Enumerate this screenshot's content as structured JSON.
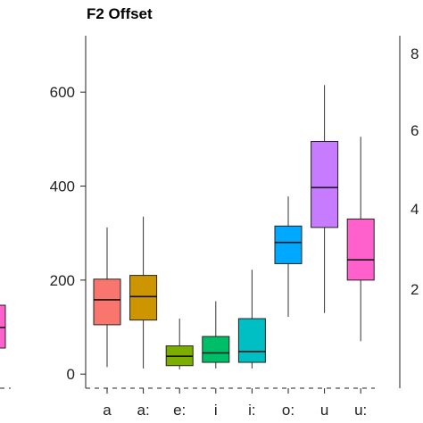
{
  "chart_data": {
    "type": "box",
    "title": "F2 Offset",
    "xlabel": "",
    "ylabel": "",
    "ylim": [
      -30,
      720
    ],
    "yticks": [
      0,
      200,
      400,
      600
    ],
    "grid": false,
    "legend": "none",
    "categories": [
      "a",
      "a:",
      "e:",
      "i",
      "i:",
      "o:",
      "u",
      "u:"
    ],
    "boxes": [
      {
        "category": "a",
        "whisker_low": 15,
        "q1": 105,
        "median": 158,
        "q3": 202,
        "whisker_high": 312,
        "color": "#F8766D"
      },
      {
        "category": "a:",
        "whisker_low": 12,
        "q1": 115,
        "median": 165,
        "q3": 210,
        "whisker_high": 335,
        "color": "#CD9600"
      },
      {
        "category": "e:",
        "whisker_low": 10,
        "q1": 18,
        "median": 38,
        "q3": 60,
        "whisker_high": 118,
        "color": "#7CAE00"
      },
      {
        "category": "i",
        "whisker_low": 12,
        "q1": 25,
        "median": 45,
        "q3": 80,
        "whisker_high": 155,
        "color": "#00BE67"
      },
      {
        "category": "i:",
        "whisker_low": 12,
        "q1": 25,
        "median": 48,
        "q3": 118,
        "whisker_high": 222,
        "color": "#00BFC4"
      },
      {
        "category": "o:",
        "whisker_low": 122,
        "q1": 235,
        "median": 280,
        "q3": 315,
        "whisker_high": 378,
        "color": "#00A9FF"
      },
      {
        "category": "u",
        "whisker_low": 130,
        "q1": 312,
        "median": 397,
        "q3": 495,
        "whisker_high": 615,
        "color": "#C77CFF"
      },
      {
        "category": "u:",
        "whisker_low": 70,
        "q1": 200,
        "median": 243,
        "q3": 330,
        "whisker_high": 505,
        "color": "#FF61CC"
      }
    ],
    "neighbor_panels": {
      "left_partial_box": {
        "color": "#FF61CC"
      },
      "right_partial_ticks": [
        "8",
        "6",
        "4",
        "2"
      ]
    }
  }
}
